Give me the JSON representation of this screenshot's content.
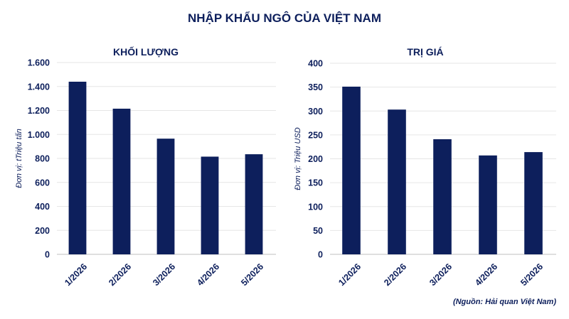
{
  "title": "NHẬP KHẨU NGÔ CỦA VIỆT NAM",
  "source": "(Nguồn: Hải quan Việt Nam)",
  "colors": {
    "bar": "#0d1f5c",
    "text": "#0d1f5c",
    "grid": "#e6e6e6",
    "axis": "#bfbfbf"
  },
  "chart_data": [
    {
      "type": "bar",
      "title": "KHỐI LƯỢNG",
      "ylabel": "Đơn vị: tTriệu tấn",
      "categories": [
        "1/2026",
        "2/2026",
        "3/2026",
        "4/2026",
        "5/2026"
      ],
      "values": [
        1440,
        1215,
        965,
        815,
        835
      ],
      "ylim": [
        0,
        1600
      ],
      "yticks": [
        0,
        200,
        400,
        600,
        800,
        1000,
        1200,
        1400,
        1600
      ],
      "ytick_labels": [
        "0",
        "200",
        "400",
        "600",
        "800",
        "1.000",
        "1.200",
        "1.400",
        "1.600"
      ],
      "grid": true
    },
    {
      "type": "bar",
      "title": "TRỊ GIÁ",
      "ylabel": "Đơn vị: Triệu USD",
      "categories": [
        "1/2026",
        "2/2026",
        "3/2026",
        "4/2026",
        "5/2026"
      ],
      "values": [
        351,
        303,
        241,
        207,
        214
      ],
      "ylim": [
        0,
        400
      ],
      "yticks": [
        0,
        50,
        100,
        150,
        200,
        250,
        300,
        350,
        400
      ],
      "ytick_labels": [
        "0",
        "50",
        "100",
        "150",
        "200",
        "250",
        "300",
        "350",
        "400"
      ],
      "grid": true
    }
  ]
}
